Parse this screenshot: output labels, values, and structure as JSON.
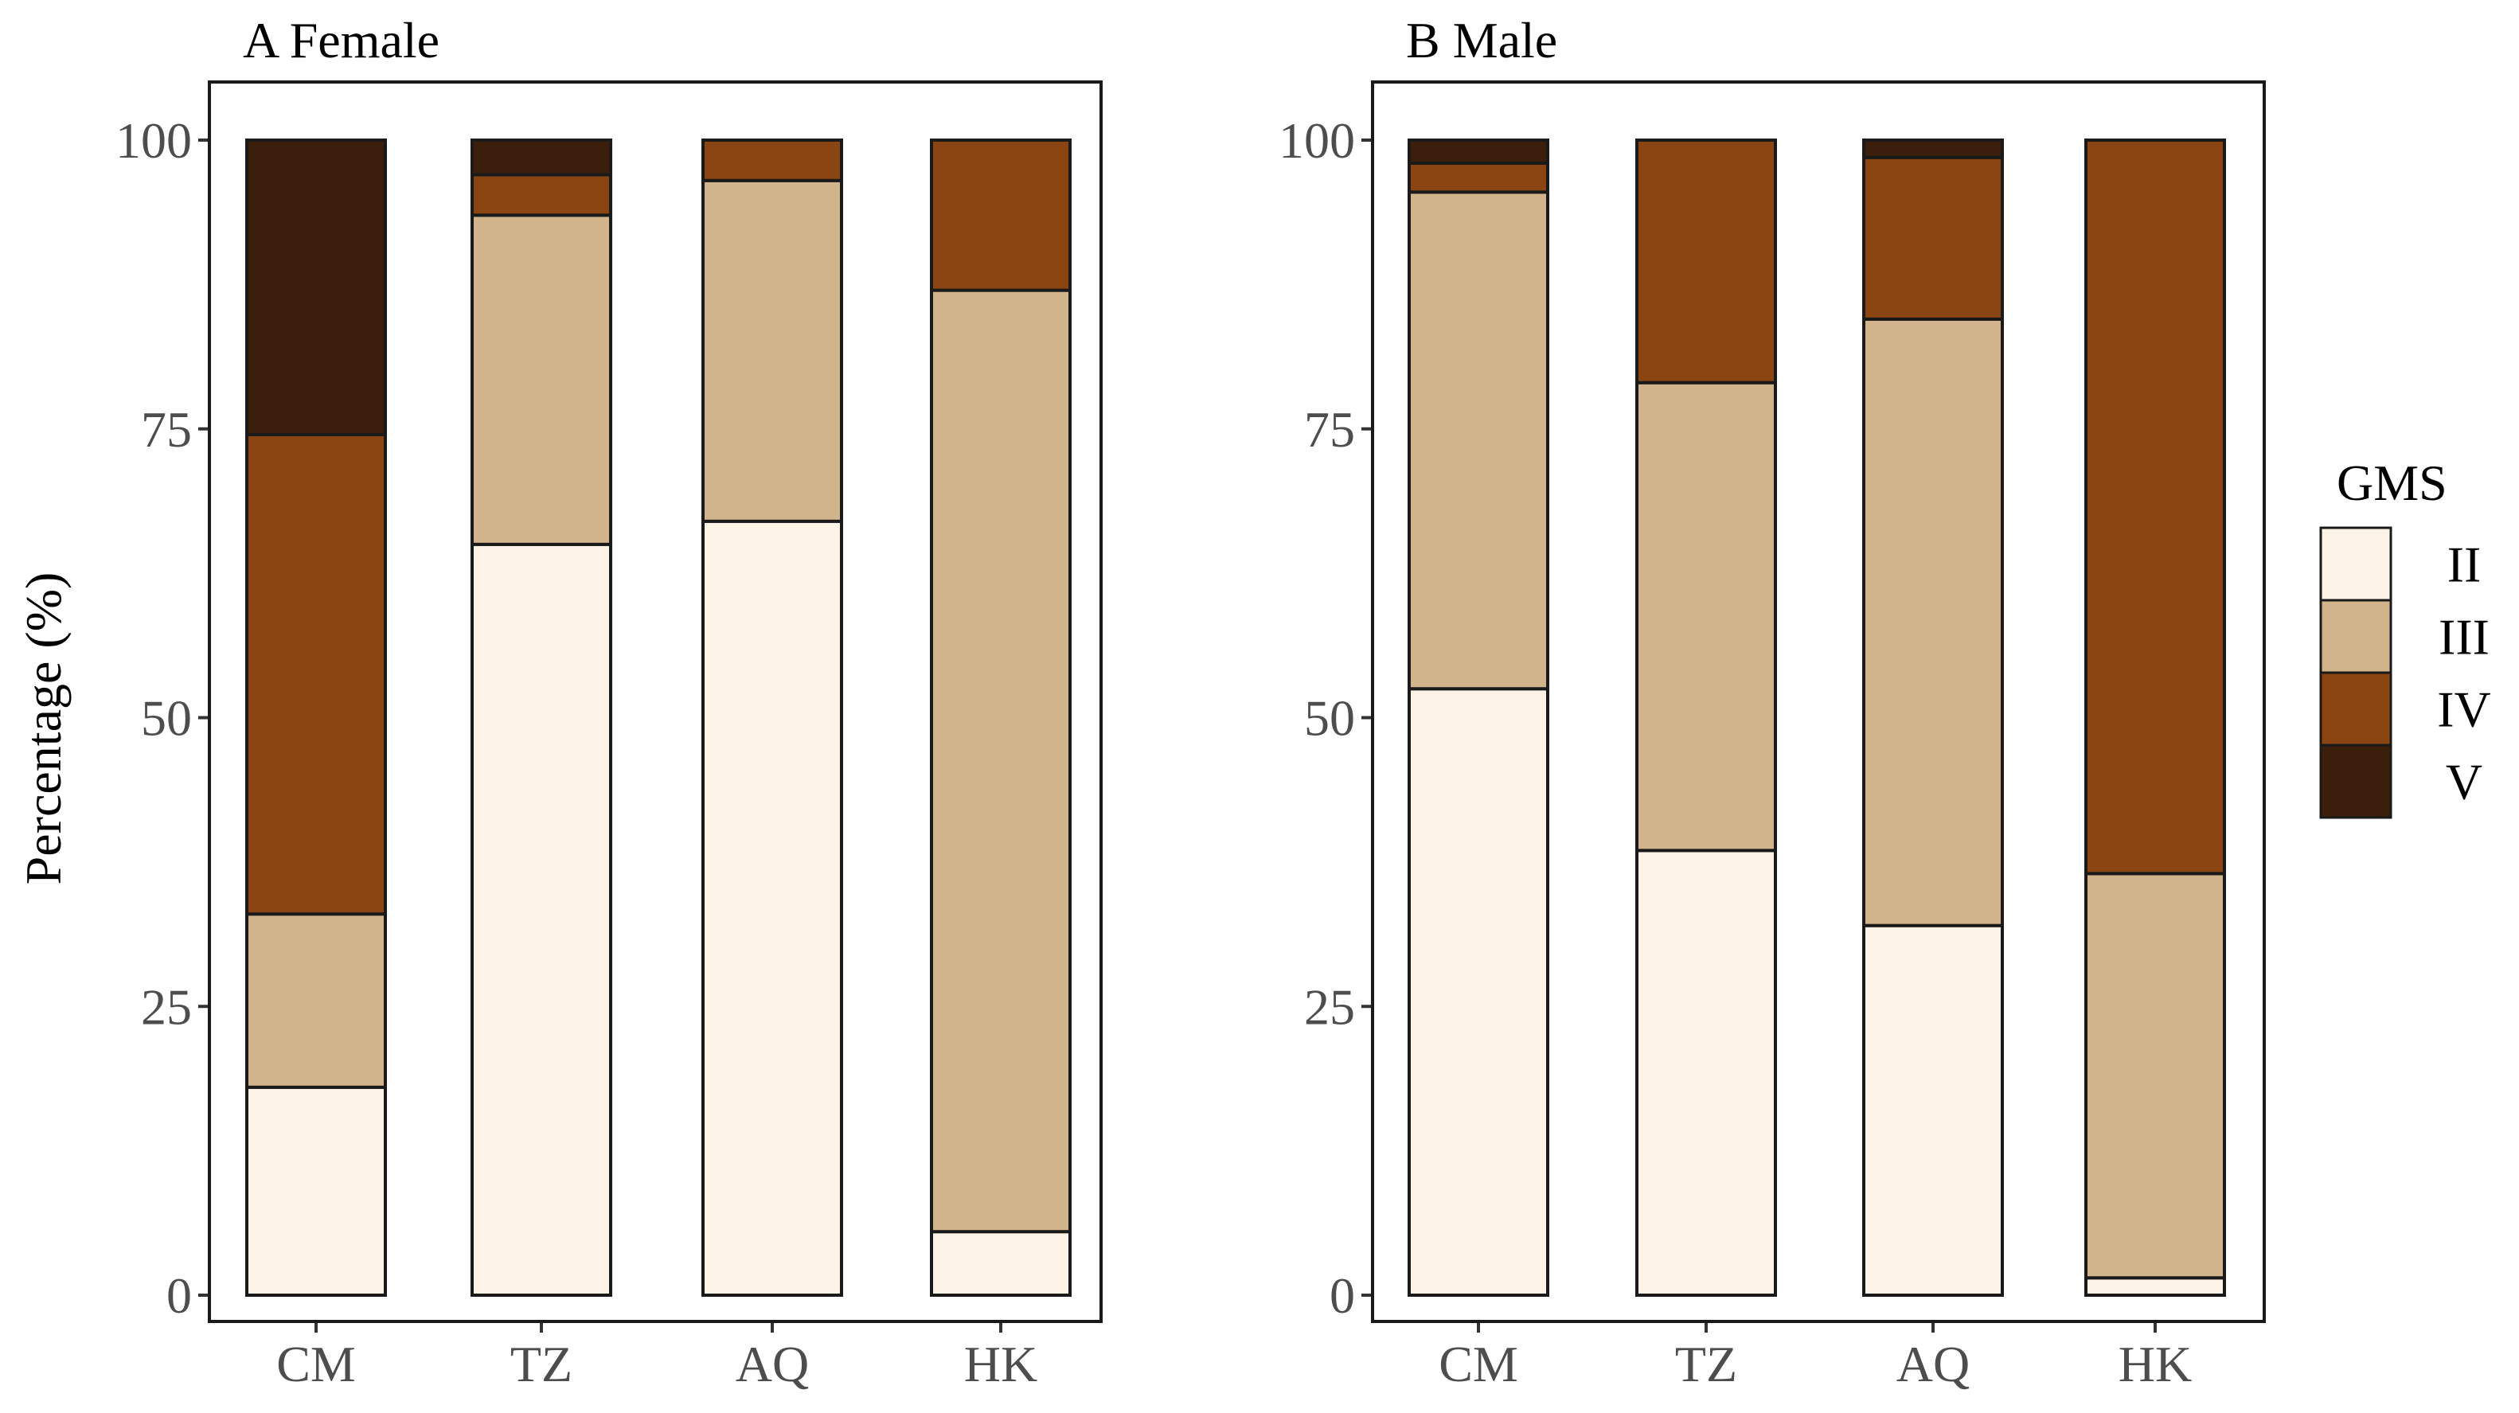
{
  "chart_data": [
    {
      "type": "bar",
      "stacked": true,
      "title": "A Female",
      "categories": [
        "CM",
        "TZ",
        "AQ",
        "HK"
      ],
      "series": [
        {
          "name": "II",
          "values": [
            18,
            65,
            67,
            5.5
          ]
        },
        {
          "name": "III",
          "values": [
            15,
            28.5,
            29.5,
            81.5
          ]
        },
        {
          "name": "IV",
          "values": [
            41.5,
            3.5,
            3.5,
            13
          ]
        },
        {
          "name": "V",
          "values": [
            25.5,
            3,
            0,
            0
          ]
        }
      ],
      "ylim": [
        0,
        100
      ],
      "yticks": [
        "0",
        "25",
        "50",
        "75",
        "100"
      ],
      "ylabel": "Percentage (%)",
      "xlabel": ""
    },
    {
      "type": "bar",
      "stacked": true,
      "title": "B Male",
      "categories": [
        "CM",
        "TZ",
        "AQ",
        "HK"
      ],
      "series": [
        {
          "name": "II",
          "values": [
            52.5,
            38.5,
            32,
            1.5
          ]
        },
        {
          "name": "III",
          "values": [
            43,
            40.5,
            52.5,
            35
          ]
        },
        {
          "name": "IV",
          "values": [
            2.5,
            21,
            14,
            63.5
          ]
        },
        {
          "name": "V",
          "values": [
            2,
            0,
            1.5,
            0
          ]
        }
      ],
      "ylim": [
        0,
        100
      ],
      "yticks": [
        "0",
        "25",
        "50",
        "75",
        "100"
      ],
      "ylabel": "",
      "xlabel": ""
    }
  ],
  "legend": {
    "title": "GMS",
    "placement": "right",
    "items": [
      {
        "label": "II",
        "color": "#FDF3E7"
      },
      {
        "label": "III",
        "color": "#D2B48C"
      },
      {
        "label": "IV",
        "color": "#8B4513"
      },
      {
        "label": "V",
        "color": "#3C1E0D"
      }
    ]
  }
}
